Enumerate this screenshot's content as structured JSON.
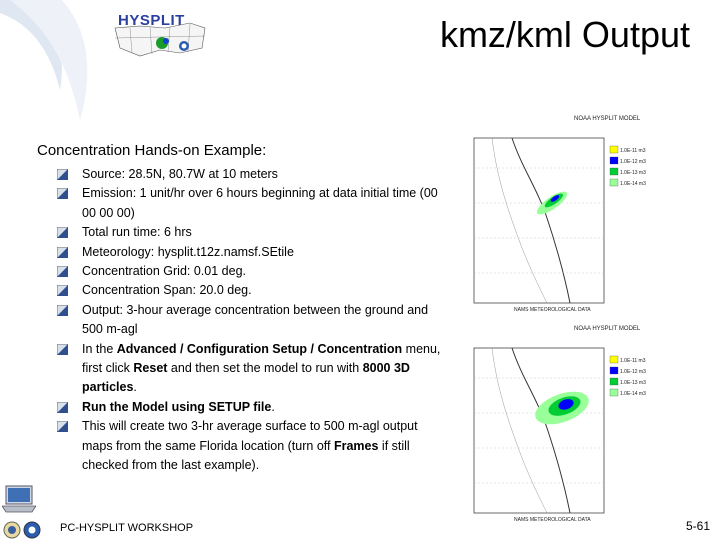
{
  "header": {
    "logo_text": "HYSPLIT",
    "title": "kmz/kml Output"
  },
  "content": {
    "subtitle": "Concentration Hands-on Example:",
    "bullets": [
      {
        "parts": [
          {
            "t": "Source: 28.5N, 80.7W at 10 meters",
            "b": false
          }
        ]
      },
      {
        "parts": [
          {
            "t": "Emission: 1 unit/hr over 6 hours beginning at data initial time (00 00 00 00)",
            "b": false
          }
        ]
      },
      {
        "parts": [
          {
            "t": "Total run time: 6 hrs",
            "b": false
          }
        ]
      },
      {
        "parts": [
          {
            "t": "Meteorology: hysplit.t12z.namsf.SEtile",
            "b": false
          }
        ]
      },
      {
        "parts": [
          {
            "t": "Concentration Grid: 0.01 deg.",
            "b": false
          }
        ]
      },
      {
        "parts": [
          {
            "t": "Concentration Span: 20.0 deg.",
            "b": false
          }
        ]
      },
      {
        "parts": [
          {
            "t": "Output: 3-hour average concentration between the ground and 500 m-agl",
            "b": false
          }
        ]
      },
      {
        "parts": [
          {
            "t": "In the ",
            "b": false
          },
          {
            "t": "Advanced / Configuration Setup / Concentration",
            "b": true
          },
          {
            "t": " menu, first click ",
            "b": false
          },
          {
            "t": "Reset",
            "b": true
          },
          {
            "t": " and then set the model  to run with ",
            "b": false
          },
          {
            "t": "8000 3D particles",
            "b": true
          },
          {
            "t": ".",
            "b": false
          }
        ]
      },
      {
        "parts": [
          {
            "t": "Run the Model using SETUP file",
            "b": true
          },
          {
            "t": ".",
            "b": false
          }
        ]
      },
      {
        "parts": [
          {
            "t": "This will create two 3-hr average surface to 500 m-agl output maps from the same Florida location (turn off ",
            "b": false
          },
          {
            "t": "Frames",
            "b": true
          },
          {
            "t": " if still checked from the last example).",
            "b": false
          }
        ]
      }
    ]
  },
  "maps": [
    {
      "header": "NOAA HYSPLIT MODEL",
      "legend": [
        "1.0E-11 m3",
        "1.0E-12 m3",
        "1.0E-13 m3",
        "1.0E-14 m3"
      ],
      "footer": "NAMS METEOROLOGICAL DATA"
    },
    {
      "header": "NOAA HYSPLIT MODEL",
      "legend": [
        "1.0E-11 m3",
        "1.0E-12 m3",
        "1.0E-13 m3",
        "1.0E-14 m3"
      ],
      "footer": "NAMS METEOROLOGICAL DATA"
    }
  ],
  "legend_colors": [
    "#ffff00",
    "#0000ff",
    "#00cc33",
    "#99ff99"
  ],
  "footer": {
    "left": "PC-HYSPLIT WORKSHOP",
    "right": "5-61"
  }
}
